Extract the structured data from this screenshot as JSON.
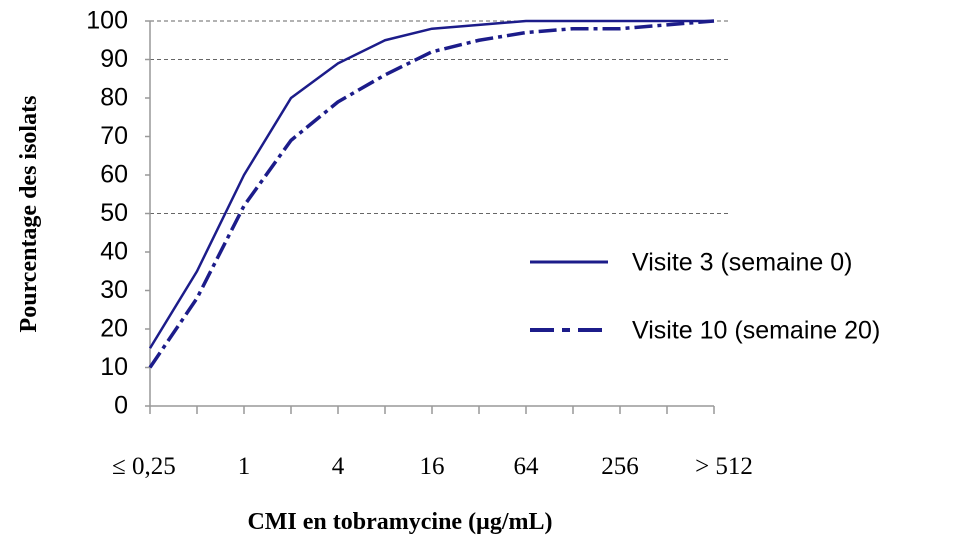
{
  "chart_data": {
    "type": "line",
    "xlabel": "CMI en tobramycine (µg/mL)",
    "ylabel": "Pourcentage des isolats",
    "categories": [
      "≤ 0,25",
      null,
      "1",
      null,
      "4",
      null,
      "16",
      null,
      "64",
      null,
      "256",
      null,
      "> 512"
    ],
    "series": [
      {
        "name": "Visite 3 (semaine 0)",
        "color": "#1c1c8a",
        "dash": "solid",
        "values": [
          15,
          35,
          60,
          80,
          89,
          95,
          98,
          99,
          100,
          100,
          100,
          100,
          100
        ]
      },
      {
        "name": "Visite 10 (semaine 20)",
        "color": "#1c1c8a",
        "dash": "dashdot",
        "values": [
          10,
          28,
          52,
          69,
          79,
          86,
          92,
          95,
          97,
          98,
          98,
          99,
          100
        ]
      }
    ],
    "ylim": [
      0,
      100
    ],
    "yticks": [
      0,
      10,
      20,
      30,
      40,
      50,
      60,
      70,
      80,
      90,
      100
    ],
    "reference_lines": [
      50,
      90,
      100
    ],
    "legend": "right"
  }
}
